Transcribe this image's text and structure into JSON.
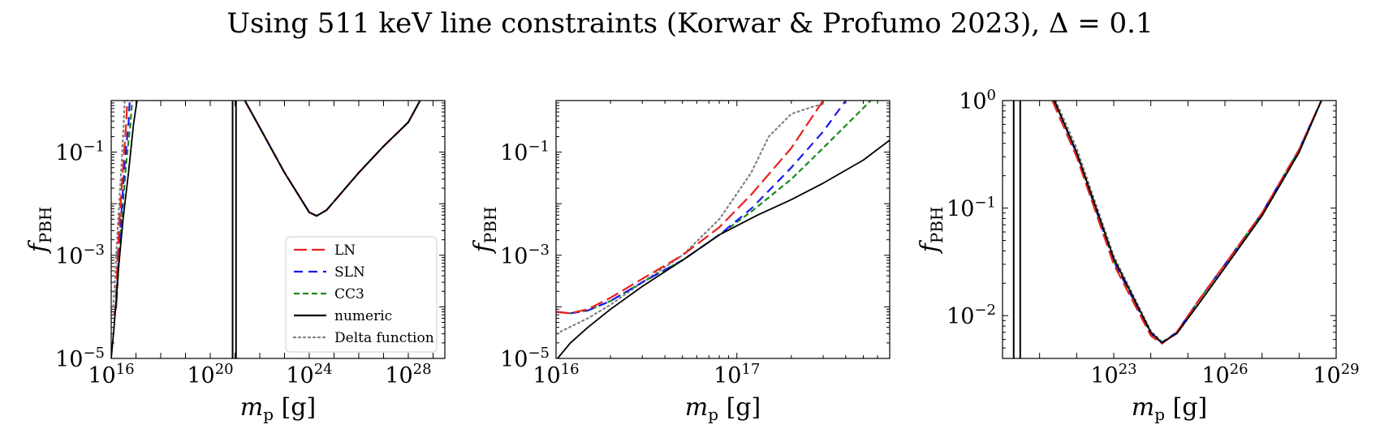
{
  "figure_title": "Using 511 keV line constraints (Korwar & Profumo 2023), Δ = 0.1",
  "legend_entries": [
    "LN",
    "SLN",
    "CC3",
    "numeric",
    "Delta function"
  ],
  "series_styles": {
    "LN": {
      "color": "#e8211c",
      "dash": "long-dash"
    },
    "SLN": {
      "color": "#1a1aee",
      "dash": "dash"
    },
    "CC3": {
      "color": "#1a8a1a",
      "dash": "short-dash"
    },
    "numeric": {
      "color": "#000000",
      "dash": "solid"
    },
    "Delta function": {
      "color": "#808080",
      "dash": "dotted"
    }
  },
  "chart_data": [
    {
      "type": "line",
      "xlabel": "m_p [g]",
      "ylabel": "f_PBH",
      "xscale": "log",
      "yscale": "log",
      "xlim": [
        1e+16,
        3e+29
      ],
      "ylim": [
        1e-05,
        1
      ],
      "xticks": [
        {
          "base": "10",
          "exp": "16"
        },
        {
          "base": "10",
          "exp": "20"
        },
        {
          "base": "10",
          "exp": "24"
        },
        {
          "base": "10",
          "exp": "28"
        }
      ],
      "yticks": [
        {
          "base": "10",
          "exp": "−1"
        },
        {
          "base": "10",
          "exp": "−3"
        },
        {
          "base": "10",
          "exp": "−5"
        }
      ],
      "vertical_lines_x": [
        8e+20,
        1.1e+21
      ],
      "legend_position": "lower right",
      "series": [
        {
          "name": "LN",
          "segments": [
            [
              [
                1.3e+16,
                7e-05
              ],
              [
                1.5e+16,
                9e-05
              ],
              [
                1.8e+16,
                0.0008
              ],
              [
                2.2e+16,
                0.005
              ],
              [
                3e+16,
                0.05
              ],
              [
                4e+16,
                0.35
              ],
              [
                4.5e+16,
                1
              ]
            ],
            [
              [
                2.5e+21,
                1
              ],
              [
                1e+22,
                0.3
              ],
              [
                1e+23,
                0.04
              ],
              [
                1e+24,
                0.0068
              ],
              [
                2e+24,
                0.0058
              ],
              [
                5e+24,
                0.0075
              ],
              [
                1e+26,
                0.04
              ],
              [
                1e+27,
                0.13
              ],
              [
                1e+28,
                0.38
              ],
              [
                3e+28,
                1
              ]
            ]
          ]
        },
        {
          "name": "SLN",
          "segments": [
            [
              [
                1.3e+16,
                7e-05
              ],
              [
                1.6e+16,
                0.0001
              ],
              [
                2e+16,
                0.001
              ],
              [
                2.6e+16,
                0.007
              ],
              [
                3.5e+16,
                0.06
              ],
              [
                5e+16,
                0.35
              ],
              [
                5.6e+16,
                1
              ]
            ],
            [
              [
                2.5e+21,
                1
              ],
              [
                1e+22,
                0.3
              ],
              [
                1e+23,
                0.04
              ],
              [
                1e+24,
                0.0068
              ],
              [
                2e+24,
                0.0058
              ],
              [
                5e+24,
                0.0075
              ],
              [
                1e+26,
                0.04
              ],
              [
                1e+27,
                0.13
              ],
              [
                1e+28,
                0.38
              ],
              [
                3e+28,
                1
              ]
            ]
          ]
        },
        {
          "name": "CC3",
          "segments": [
            [
              [
                1.3e+16,
                7e-05
              ],
              [
                1.6e+16,
                0.0001
              ],
              [
                2.1e+16,
                0.001
              ],
              [
                2.8e+16,
                0.007
              ],
              [
                4e+16,
                0.06
              ],
              [
                6e+16,
                0.35
              ],
              [
                7e+16,
                1
              ]
            ],
            [
              [
                2.5e+21,
                1
              ],
              [
                1e+22,
                0.3
              ],
              [
                1e+23,
                0.04
              ],
              [
                1e+24,
                0.0068
              ],
              [
                2e+24,
                0.0058
              ],
              [
                5e+24,
                0.0075
              ],
              [
                1e+26,
                0.04
              ],
              [
                1e+27,
                0.13
              ],
              [
                1e+28,
                0.38
              ],
              [
                3e+28,
                1
              ]
            ]
          ]
        },
        {
          "name": "numeric",
          "segments": [
            [
              [
                1e+16,
                1e-05
              ],
              [
                1.3e+16,
                4e-05
              ],
              [
                2e+16,
                0.0006
              ],
              [
                3e+16,
                0.005
              ],
              [
                5e+16,
                0.04
              ],
              [
                8e+16,
                0.35
              ],
              [
                1.1e+17,
                1
              ]
            ],
            [
              [
                2.5e+21,
                1
              ],
              [
                1e+22,
                0.3
              ],
              [
                1e+23,
                0.04
              ],
              [
                1e+24,
                0.0068
              ],
              [
                2e+24,
                0.0058
              ],
              [
                5e+24,
                0.0075
              ],
              [
                1e+26,
                0.04
              ],
              [
                1e+27,
                0.13
              ],
              [
                1e+28,
                0.38
              ],
              [
                3e+28,
                1
              ]
            ]
          ]
        },
        {
          "name": "Delta function",
          "segments": [
            [
              [
                1.2e+16,
                0.0001
              ],
              [
                1.4e+16,
                0.0003
              ],
              [
                1.8e+16,
                0.003
              ],
              [
                2.5e+16,
                0.04
              ],
              [
                3.2e+16,
                0.35
              ],
              [
                3.5e+16,
                1
              ]
            ],
            [
              [
                2.5e+21,
                1
              ],
              [
                1e+22,
                0.3
              ],
              [
                1e+23,
                0.04
              ],
              [
                1e+24,
                0.0068
              ],
              [
                2e+24,
                0.0058
              ],
              [
                5e+24,
                0.0075
              ],
              [
                1e+26,
                0.04
              ],
              [
                1e+27,
                0.13
              ],
              [
                1e+28,
                0.38
              ],
              [
                3e+28,
                1
              ]
            ]
          ]
        }
      ]
    },
    {
      "type": "line",
      "xlabel": "m_p [g]",
      "ylabel": "f_PBH",
      "xscale": "log",
      "yscale": "log",
      "xlim": [
        1e+16,
        7e+17
      ],
      "ylim": [
        1e-05,
        1
      ],
      "xticks": [
        {
          "base": "10",
          "exp": "16"
        },
        {
          "base": "10",
          "exp": "17"
        }
      ],
      "yticks": [
        {
          "base": "10",
          "exp": "−1"
        },
        {
          "base": "10",
          "exp": "−3"
        },
        {
          "base": "10",
          "exp": "−5"
        }
      ],
      "series": [
        {
          "name": "LN",
          "segments": [
            [
              [
                1e+16,
                8e-05
              ],
              [
                1.2e+16,
                7.5e-05
              ],
              [
                1.5e+16,
                9e-05
              ],
              [
                2e+16,
                0.00015
              ],
              [
                3e+16,
                0.00035
              ],
              [
                5e+16,
                0.001
              ],
              [
                8e+16,
                0.0035
              ],
              [
                1.2e+17,
                0.015
              ],
              [
                2e+17,
                0.12
              ],
              [
                3e+17,
                1
              ]
            ]
          ]
        },
        {
          "name": "SLN",
          "segments": [
            [
              [
                1e+16,
                8e-05
              ],
              [
                1.2e+16,
                7.5e-05
              ],
              [
                1.5e+16,
                8.5e-05
              ],
              [
                2e+16,
                0.00013
              ],
              [
                3e+16,
                0.0003
              ],
              [
                5e+16,
                0.0008
              ],
              [
                8e+16,
                0.0025
              ],
              [
                1.2e+17,
                0.008
              ],
              [
                2e+17,
                0.05
              ],
              [
                3e+17,
                0.25
              ],
              [
                4e+17,
                1
              ]
            ]
          ]
        },
        {
          "name": "CC3",
          "segments": [
            [
              [
                1e+16,
                8e-05
              ],
              [
                1.2e+16,
                7.5e-05
              ],
              [
                1.5e+16,
                8.5e-05
              ],
              [
                2e+16,
                0.00013
              ],
              [
                3e+16,
                0.0003
              ],
              [
                5e+16,
                0.0008
              ],
              [
                8e+16,
                0.0025
              ],
              [
                1.2e+17,
                0.007
              ],
              [
                2e+17,
                0.03
              ],
              [
                3e+17,
                0.12
              ],
              [
                5.5e+17,
                1
              ]
            ]
          ]
        },
        {
          "name": "numeric",
          "segments": [
            [
              [
                1.02e+16,
                1e-05
              ],
              [
                1.2e+16,
                2e-05
              ],
              [
                1.5e+16,
                4e-05
              ],
              [
                2e+16,
                9e-05
              ],
              [
                3e+16,
                0.00025
              ],
              [
                5e+16,
                0.0008
              ],
              [
                8e+16,
                0.0025
              ],
              [
                1.3e+17,
                0.006
              ],
              [
                2e+17,
                0.012
              ],
              [
                3e+17,
                0.025
              ],
              [
                5e+17,
                0.07
              ],
              [
                7e+17,
                0.17
              ]
            ]
          ]
        },
        {
          "name": "Delta function",
          "segments": [
            [
              [
                1e+16,
                3e-05
              ],
              [
                1.5e+16,
                6e-05
              ],
              [
                2e+16,
                0.00011
              ],
              [
                3e+16,
                0.0003
              ],
              [
                5e+16,
                0.001
              ],
              [
                8e+16,
                0.005
              ],
              [
                1.2e+17,
                0.04
              ],
              [
                1.5e+17,
                0.2
              ],
              [
                2e+17,
                0.55
              ],
              [
                2.6e+17,
                0.75
              ],
              [
                3e+17,
                0.85
              ]
            ]
          ]
        }
      ]
    },
    {
      "type": "line",
      "xlabel": "m_p [g]",
      "ylabel": "f_PBH",
      "xscale": "log",
      "yscale": "log",
      "xlim": [
        1e+20,
        1e+29
      ],
      "ylim": [
        0.004,
        1
      ],
      "xticks": [
        {
          "base": "10",
          "exp": "23"
        },
        {
          "base": "10",
          "exp": "26"
        },
        {
          "base": "10",
          "exp": "29"
        }
      ],
      "yticks": [
        {
          "base": "10",
          "exp": "0"
        },
        {
          "base": "10",
          "exp": "−1"
        },
        {
          "base": "10",
          "exp": "−2"
        }
      ],
      "vertical_lines_x": [
        2e+20,
        3e+20
      ],
      "series": [
        {
          "name": "LN",
          "segments": [
            [
              [
                2.2e+21,
                1
              ],
              [
                1e+22,
                0.3
              ],
              [
                1e+23,
                0.03
              ],
              [
                1e+24,
                0.0065
              ],
              [
                2e+24,
                0.0055
              ],
              [
                5e+24,
                0.007
              ],
              [
                2e+25,
                0.014
              ],
              [
                1e+26,
                0.03
              ],
              [
                1e+27,
                0.09
              ],
              [
                1e+28,
                0.35
              ],
              [
                4e+28,
                1
              ]
            ]
          ]
        },
        {
          "name": "SLN",
          "segments": [
            [
              [
                2.5e+21,
                1
              ],
              [
                1e+22,
                0.32
              ],
              [
                1e+23,
                0.032
              ],
              [
                1e+24,
                0.0068
              ],
              [
                2e+24,
                0.0056
              ],
              [
                5e+24,
                0.007
              ],
              [
                2e+25,
                0.014
              ],
              [
                1e+26,
                0.03
              ],
              [
                1e+27,
                0.09
              ],
              [
                1e+28,
                0.35
              ],
              [
                4e+28,
                1
              ]
            ]
          ]
        },
        {
          "name": "CC3",
          "segments": [
            [
              [
                2.5e+21,
                1
              ],
              [
                1e+22,
                0.32
              ],
              [
                1e+23,
                0.032
              ],
              [
                1e+24,
                0.0068
              ],
              [
                2e+24,
                0.0056
              ],
              [
                5e+24,
                0.007
              ],
              [
                2e+25,
                0.014
              ],
              [
                1e+26,
                0.03
              ],
              [
                1e+27,
                0.09
              ],
              [
                1e+28,
                0.35
              ],
              [
                4e+28,
                1
              ]
            ]
          ]
        },
        {
          "name": "numeric",
          "segments": [
            [
              [
                2.5e+21,
                1
              ],
              [
                1e+22,
                0.33
              ],
              [
                1e+23,
                0.034
              ],
              [
                1e+24,
                0.007
              ],
              [
                2e+24,
                0.0056
              ],
              [
                5e+24,
                0.0068
              ],
              [
                2e+25,
                0.013
              ],
              [
                1e+26,
                0.028
              ],
              [
                1e+27,
                0.085
              ],
              [
                1e+28,
                0.33
              ],
              [
                4e+28,
                1
              ]
            ]
          ]
        },
        {
          "name": "Delta function",
          "segments": [
            [
              [
                2.7e+21,
                1
              ],
              [
                1e+22,
                0.36
              ],
              [
                1e+23,
                0.036
              ],
              [
                1e+24,
                0.0072
              ],
              [
                2e+24,
                0.0057
              ],
              [
                5e+24,
                0.0068
              ],
              [
                2e+25,
                0.013
              ],
              [
                1e+26,
                0.028
              ],
              [
                1e+27,
                0.085
              ],
              [
                1e+28,
                0.33
              ],
              [
                4e+28,
                1
              ]
            ]
          ]
        }
      ]
    }
  ]
}
